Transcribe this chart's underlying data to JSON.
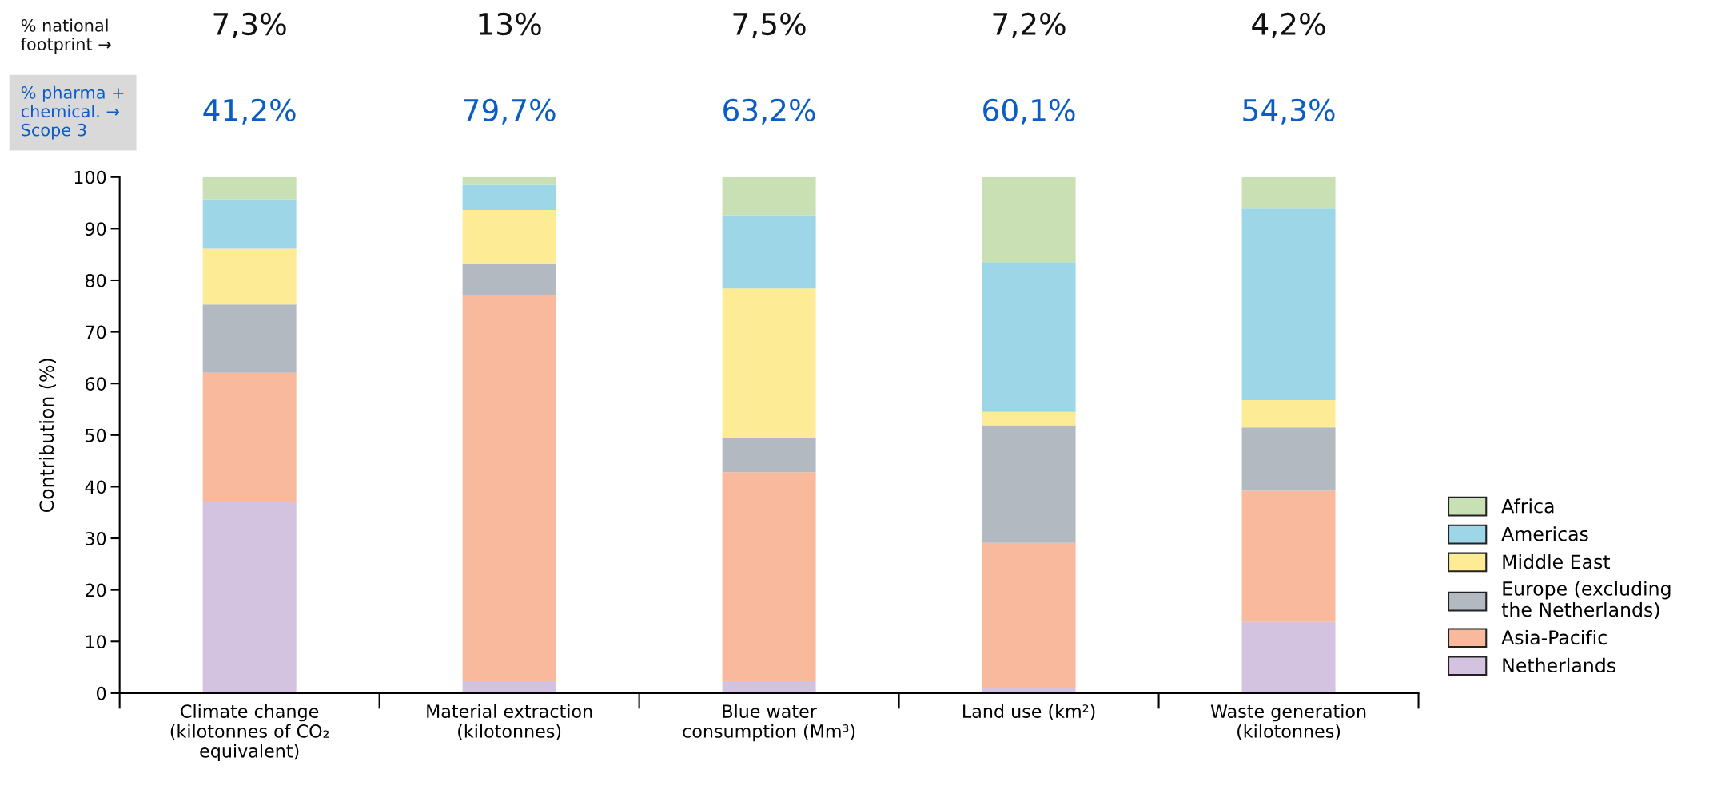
{
  "chart_data": {
    "type": "bar",
    "stacked": true,
    "ylabel": "Contribution (%)",
    "categories": [
      "Climate change\n(kilotonnes of CO₂\nequivalent)",
      "Material extraction\n(kilotonnes)",
      "Blue water\nconsumption (Mm³)",
      "Land use (km²)",
      "Waste generation\n(kilotonnes)"
    ],
    "series": [
      {
        "name": "Netherlands",
        "color": "#d3c3e0",
        "values": [
          37.1,
          2.3,
          2.3,
          0.9,
          13.8
        ]
      },
      {
        "name": "Asia-Pacific",
        "color": "#f9b99c",
        "values": [
          25.0,
          74.9,
          40.5,
          28.2,
          25.4
        ]
      },
      {
        "name": "Europe (excluding\nthe Netherlands)",
        "color": "#b3b9c0",
        "values": [
          13.2,
          6.1,
          6.6,
          22.8,
          12.3
        ]
      },
      {
        "name": "Middle East",
        "color": "#fdeb96",
        "values": [
          10.8,
          10.3,
          29.0,
          2.6,
          5.3
        ]
      },
      {
        "name": "Americas",
        "color": "#9dd6e6",
        "values": [
          9.6,
          4.9,
          14.2,
          29.0,
          37.1
        ]
      },
      {
        "name": "Africa",
        "color": "#c9e0b4",
        "values": [
          4.3,
          1.5,
          7.4,
          16.5,
          6.1
        ]
      }
    ],
    "ylim": [
      0,
      100
    ],
    "yticks": [
      0,
      10,
      20,
      30,
      40,
      50,
      60,
      70,
      80,
      90,
      100
    ],
    "grid": false,
    "legend": "right",
    "annotations": [
      "% national\nfootprint →",
      "7,3%",
      "13%",
      "7,5%",
      "7,2%",
      "4,2%",
      "% pharma +\nchemical. →\nScope 3",
      "41,2%",
      "79,7%",
      "63,2%",
      "60,1%",
      "54,3%"
    ]
  }
}
